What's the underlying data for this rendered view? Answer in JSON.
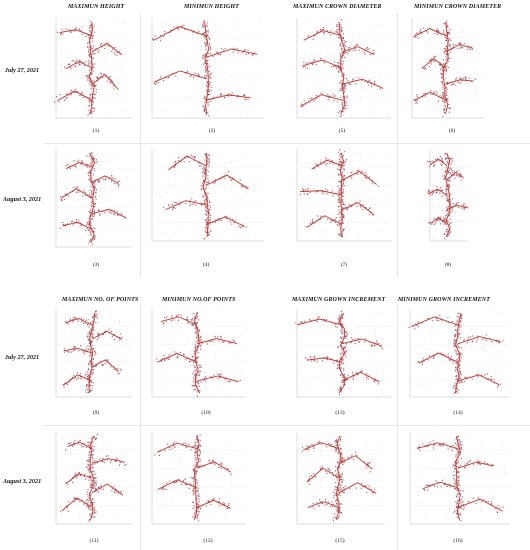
{
  "headers": {
    "max_height": "MAXIMUN HEIGHT",
    "min_height": "MINIMUN HEIGHT",
    "max_crown": "MAXIMUN CROWN DIAMETER",
    "min_crown": "MINIMUN CROWN DIAMETER",
    "max_points": "MAXIMUN NO. OF POINTS",
    "min_points": "MINIMUN NO.OF POINTS",
    "max_growth": "MAXIMUN GROWN INCREMENT",
    "min_growth": "MINIMUN GROWN INCREMENT"
  },
  "rows": {
    "july_top": "July 27, 2021",
    "august_top": "August 3, 2021",
    "july_bottom": "July 27, 2021",
    "august_bottom": "August 3, 2021"
  },
  "captions": [
    "(1)",
    "(2)",
    "(3)",
    "(4)",
    "(5)",
    "(6)",
    "(7)",
    "(8)",
    "(9)",
    "(10)",
    "(11)",
    "(12)",
    "(13)",
    "(14)",
    "(15)",
    "(16)"
  ],
  "colors": {
    "skeleton": "#c0392b",
    "points": "#222222",
    "halo": "#f2a6b8"
  }
}
